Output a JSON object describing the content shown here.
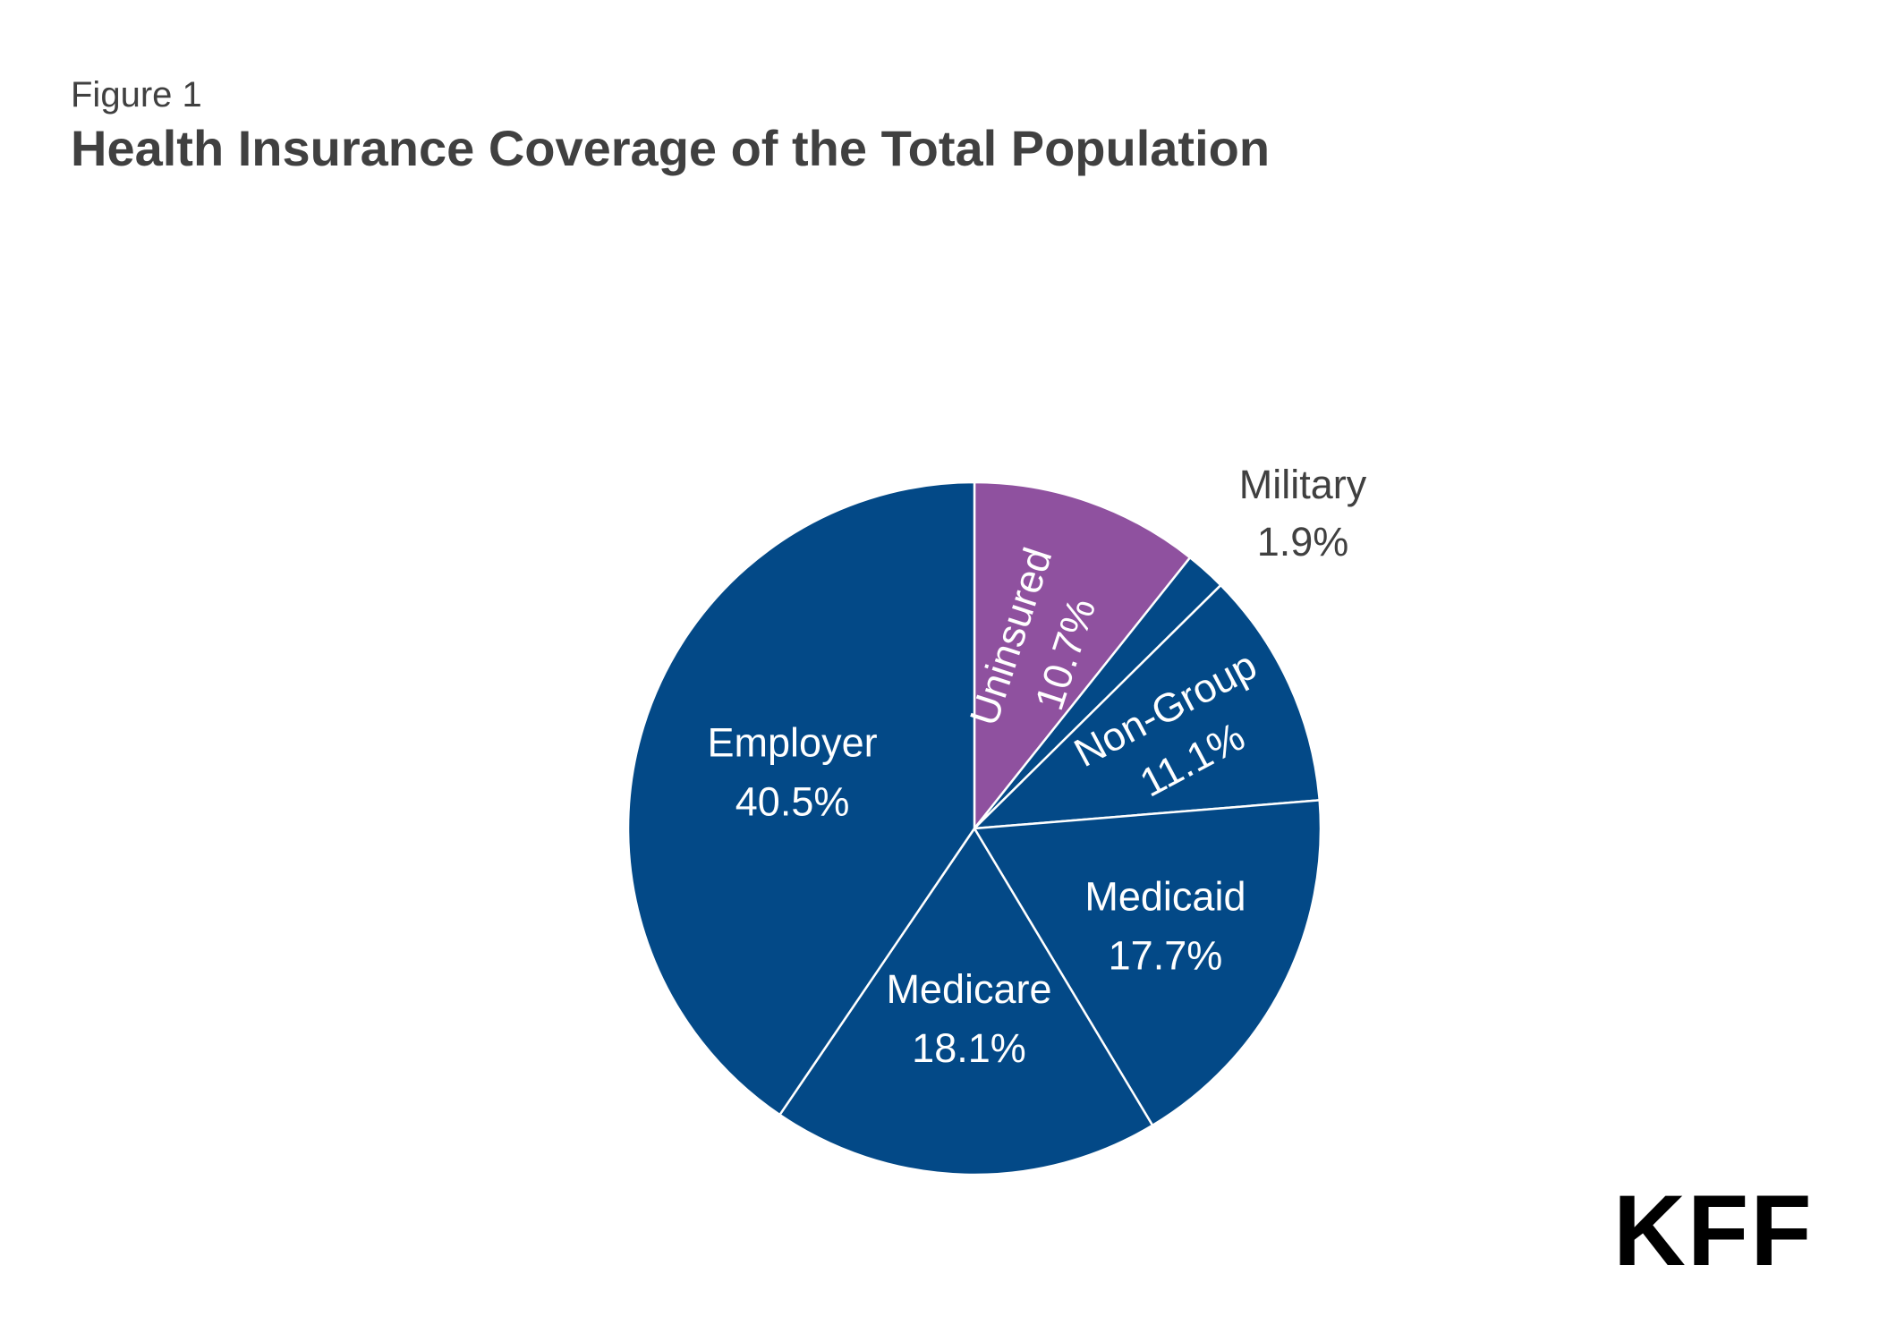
{
  "header": {
    "figure_label": "Figure 1",
    "title": "Health Insurance Coverage of the Total Population"
  },
  "chart_data": {
    "type": "pie",
    "title": "Health Insurance Coverage of the Total Population",
    "start_angle_deg": 0,
    "direction": "clockwise",
    "slices": [
      {
        "label": "Uninsured",
        "value": 10.7,
        "value_label": "10.7%",
        "color": "#8f519f",
        "text_color": "#ffffff",
        "label_position": "inside",
        "label_rotated": true
      },
      {
        "label": "Military",
        "value": 1.9,
        "value_label": "1.9%",
        "color": "#034987",
        "text_color": "#404040",
        "label_position": "outside"
      },
      {
        "label": "Non-Group",
        "value": 11.1,
        "value_label": "11.1%",
        "color": "#034987",
        "text_color": "#ffffff",
        "label_position": "inside",
        "label_rotated": true
      },
      {
        "label": "Medicaid",
        "value": 17.7,
        "value_label": "17.7%",
        "color": "#034987",
        "text_color": "#ffffff",
        "label_position": "inside"
      },
      {
        "label": "Medicare",
        "value": 18.1,
        "value_label": "18.1%",
        "color": "#034987",
        "text_color": "#ffffff",
        "label_position": "inside"
      },
      {
        "label": "Employer",
        "value": 40.5,
        "value_label": "40.5%",
        "color": "#034987",
        "text_color": "#ffffff",
        "label_position": "inside"
      }
    ],
    "slice_border_color": "#ffffff",
    "legend": "none"
  },
  "logo": {
    "text": "KFF"
  }
}
